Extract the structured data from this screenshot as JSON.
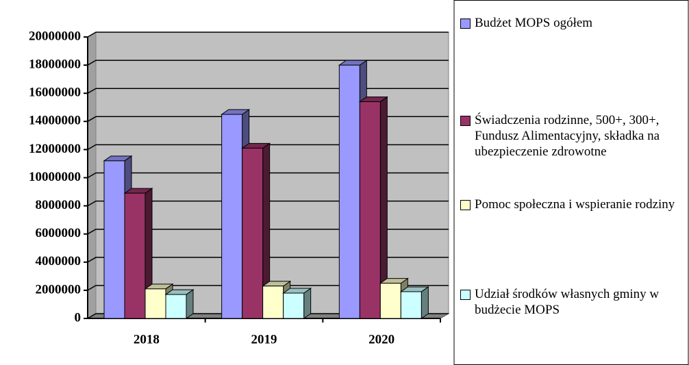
{
  "chart_data": {
    "type": "bar3d",
    "categories": [
      "2018",
      "2019",
      "2020"
    ],
    "series": [
      {
        "name": "Budżet MOPS ogółem",
        "color": "#9999ff",
        "values": [
          11200000,
          14500000,
          18000000
        ]
      },
      {
        "name": "Świadczenia rodzinne, 500+, 300+, Fundusz Alimentacyjny, składka na ubezpieczenie zdrowotne",
        "color": "#993366",
        "values": [
          8900000,
          12100000,
          15400000
        ]
      },
      {
        "name": "Pomoc społeczna i wspieranie rodziny",
        "color": "#ffffcc",
        "values": [
          2100000,
          2300000,
          2500000
        ]
      },
      {
        "name": "Udział środków własnych gminy w budżecie MOPS",
        "color": "#ccffff",
        "values": [
          1700000,
          1800000,
          1900000
        ]
      }
    ],
    "ylim": [
      0,
      20000000
    ],
    "yticks": [
      0,
      2000000,
      4000000,
      6000000,
      8000000,
      10000000,
      12000000,
      14000000,
      16000000,
      18000000,
      20000000
    ],
    "grid": true,
    "legend": "right"
  }
}
